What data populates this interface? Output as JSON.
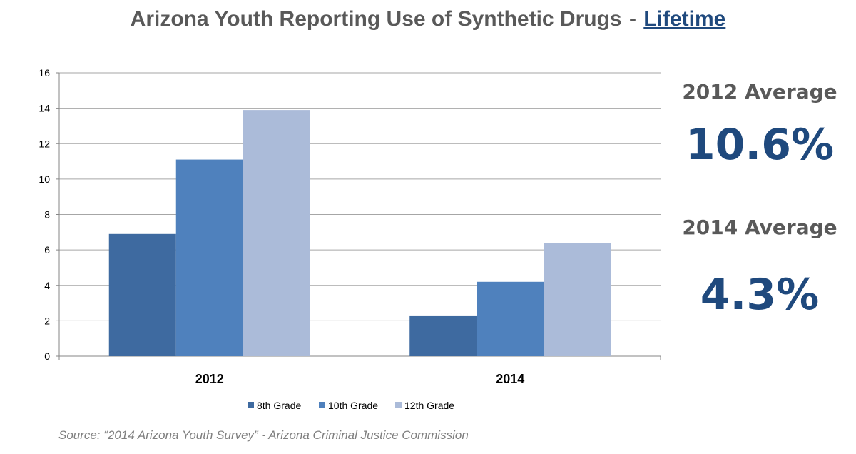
{
  "title": {
    "prefix": "Arizona Youth Reporting Use of Synthetic Drugs",
    "separator": "-",
    "highlight": "Lifetime"
  },
  "chart_data": {
    "type": "bar",
    "categories": [
      "2012",
      "2014"
    ],
    "series": [
      {
        "name": "8th Grade",
        "values": [
          6.9,
          2.3
        ],
        "color": "#3e6aa0"
      },
      {
        "name": "10th Grade",
        "values": [
          11.1,
          4.2
        ],
        "color": "#4f81bd"
      },
      {
        "name": "12th Grade",
        "values": [
          13.9,
          6.4
        ],
        "color": "#abbbd9"
      }
    ],
    "ylim": [
      0,
      16
    ],
    "yticks": [
      "0",
      "2",
      "4",
      "6",
      "8",
      "10",
      "12",
      "14",
      "16"
    ],
    "grid": true,
    "legend_position": "bottom"
  },
  "stats": [
    {
      "label": "2012  Average",
      "value": "10.6%"
    },
    {
      "label": "2014  Average",
      "value": "4.3%"
    }
  ],
  "source": "Source: “2014 Arizona Youth Survey” - Arizona Criminal Justice Commission"
}
